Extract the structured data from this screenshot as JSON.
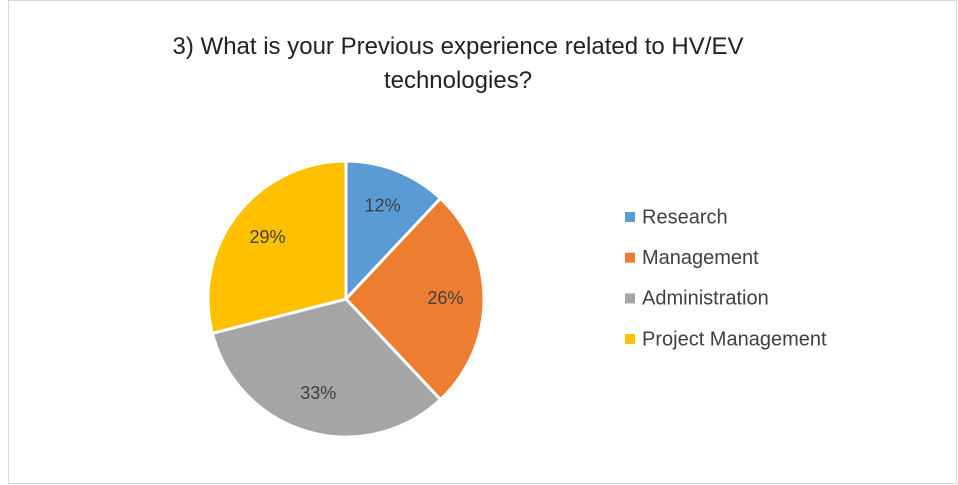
{
  "chart_data": {
    "type": "pie",
    "title": "3) What is your Previous experience related to HV/EV technologies?",
    "categories": [
      "Research",
      "Management",
      "Administration",
      "Project Management"
    ],
    "values": [
      12,
      26,
      33,
      29
    ],
    "value_labels": [
      "12%",
      "26%",
      "33%",
      "29%"
    ],
    "colors": [
      "#5b9bd5",
      "#ed7d31",
      "#a5a5a5",
      "#ffc000"
    ],
    "legend": "right"
  }
}
